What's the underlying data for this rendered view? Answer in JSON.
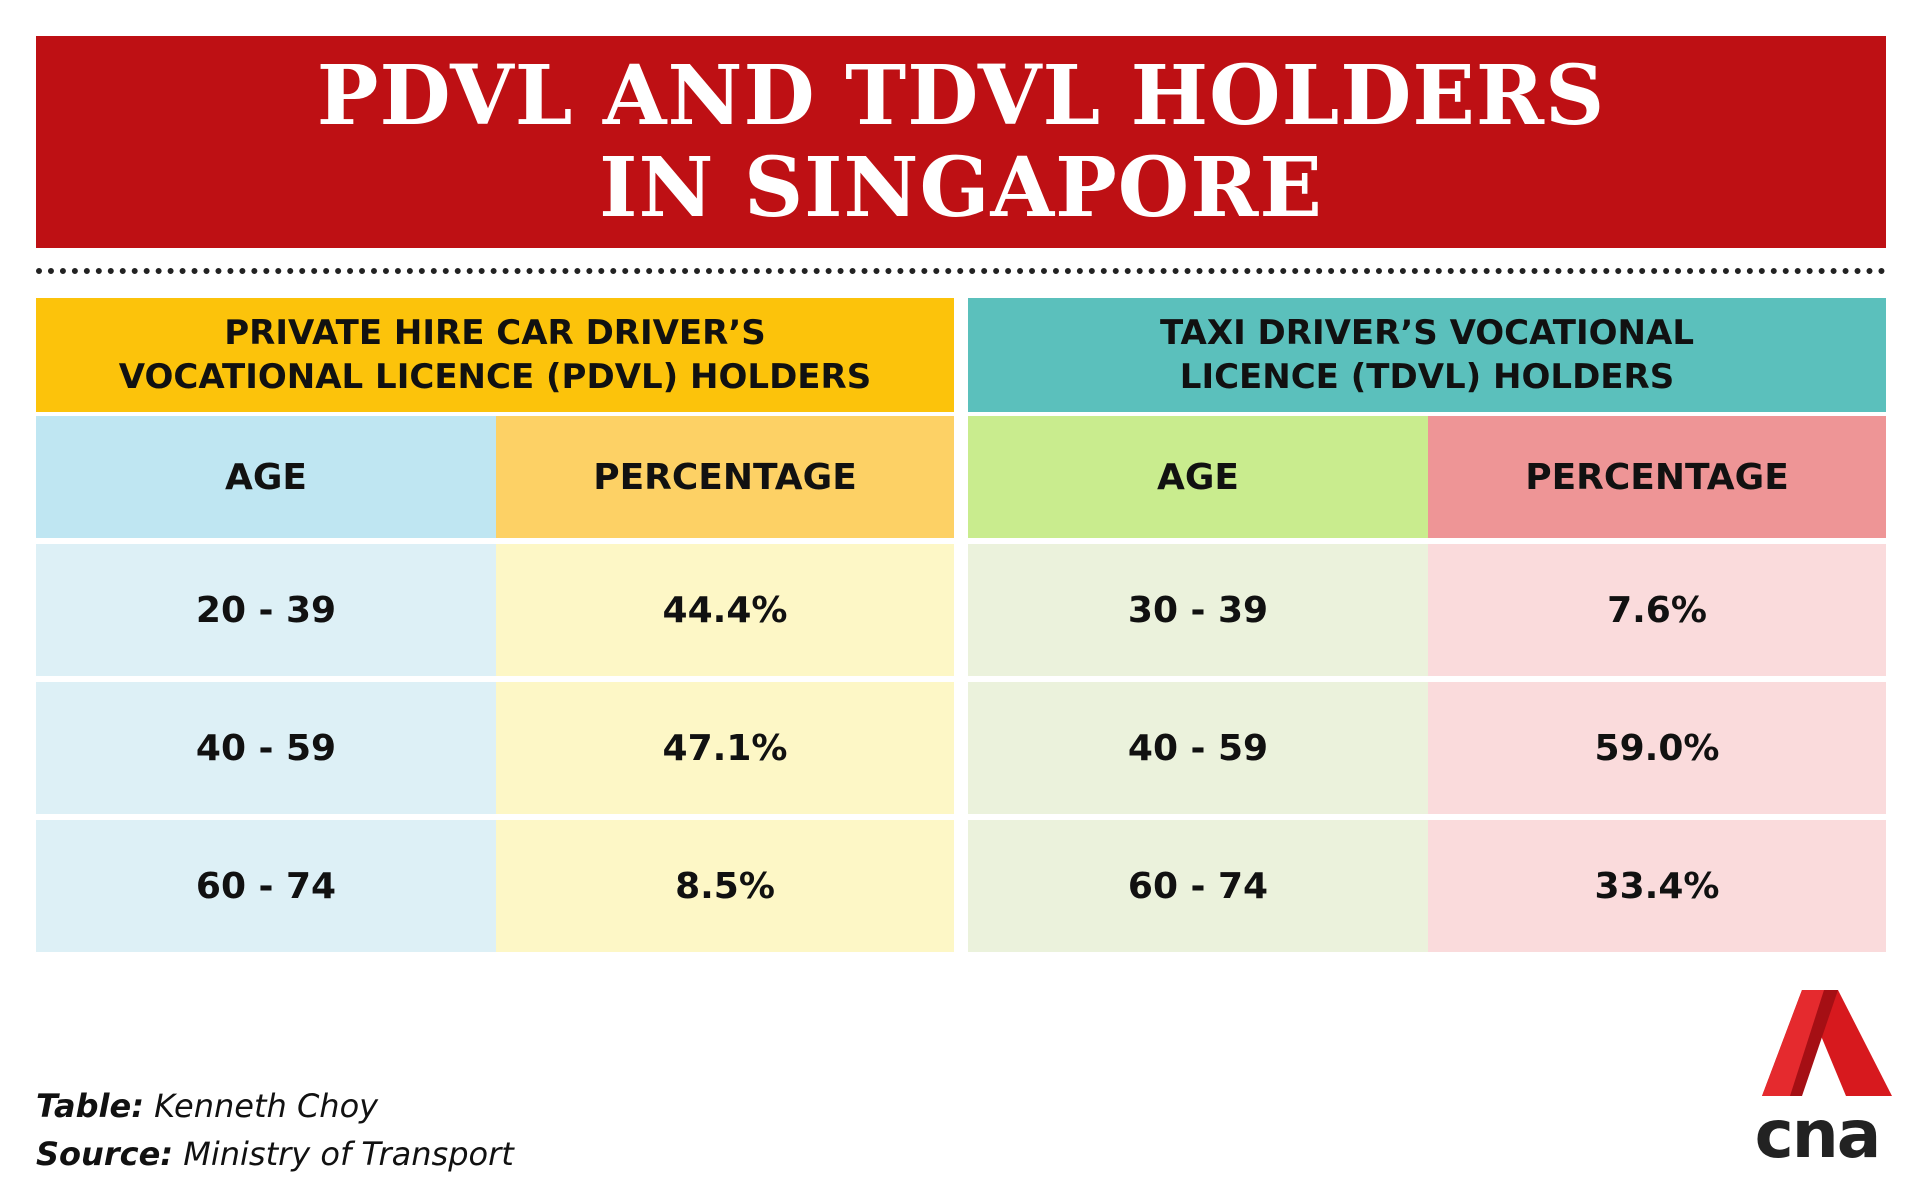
{
  "chart_data": {
    "type": "table",
    "title": [
      "PDVL AND TDVL HOLDERS",
      "IN SINGAPORE"
    ],
    "tables": [
      {
        "heading": [
          "PRIVATE HIRE CAR DRIVER’S",
          "VOCATIONAL LICENCE (PDVL) HOLDERS"
        ],
        "columns": [
          "AGE",
          "PERCENTAGE"
        ],
        "rows": [
          [
            "20 - 39",
            "44.4%"
          ],
          [
            "40 - 59",
            "47.1%"
          ],
          [
            "60 - 74",
            "8.5%"
          ]
        ],
        "colors": {
          "heading": "#fcc30b",
          "age_head": "#bfe6f2",
          "pct_head": "#fdd165",
          "age_cell": "#ddf0f6",
          "pct_cell": "#fdf7c6"
        }
      },
      {
        "heading": [
          "TAXI DRIVER’S VOCATIONAL",
          "LICENCE (TDVL) HOLDERS"
        ],
        "columns": [
          "AGE",
          "PERCENTAGE"
        ],
        "rows": [
          [
            "30 - 39",
            "7.6%"
          ],
          [
            "40 - 59",
            "59.0%"
          ],
          [
            "60 - 74",
            "33.4%"
          ]
        ],
        "colors": {
          "heading": "#5bc0bc",
          "age_head": "#c9ec8e",
          "pct_head": "#ee9596",
          "age_cell": "#ebf2dc",
          "pct_cell": "#fadbdc"
        }
      }
    ]
  },
  "credits": {
    "table_label": "Table:",
    "table_value": " Kenneth Choy",
    "source_label": "Source:",
    "source_value": " Ministry of Transport"
  },
  "logo": {
    "text": "cna",
    "icon": "cna-logo-icon",
    "color": "#d7191e"
  },
  "colors": {
    "banner": "#be1014",
    "banner_text": "#ffffff"
  }
}
